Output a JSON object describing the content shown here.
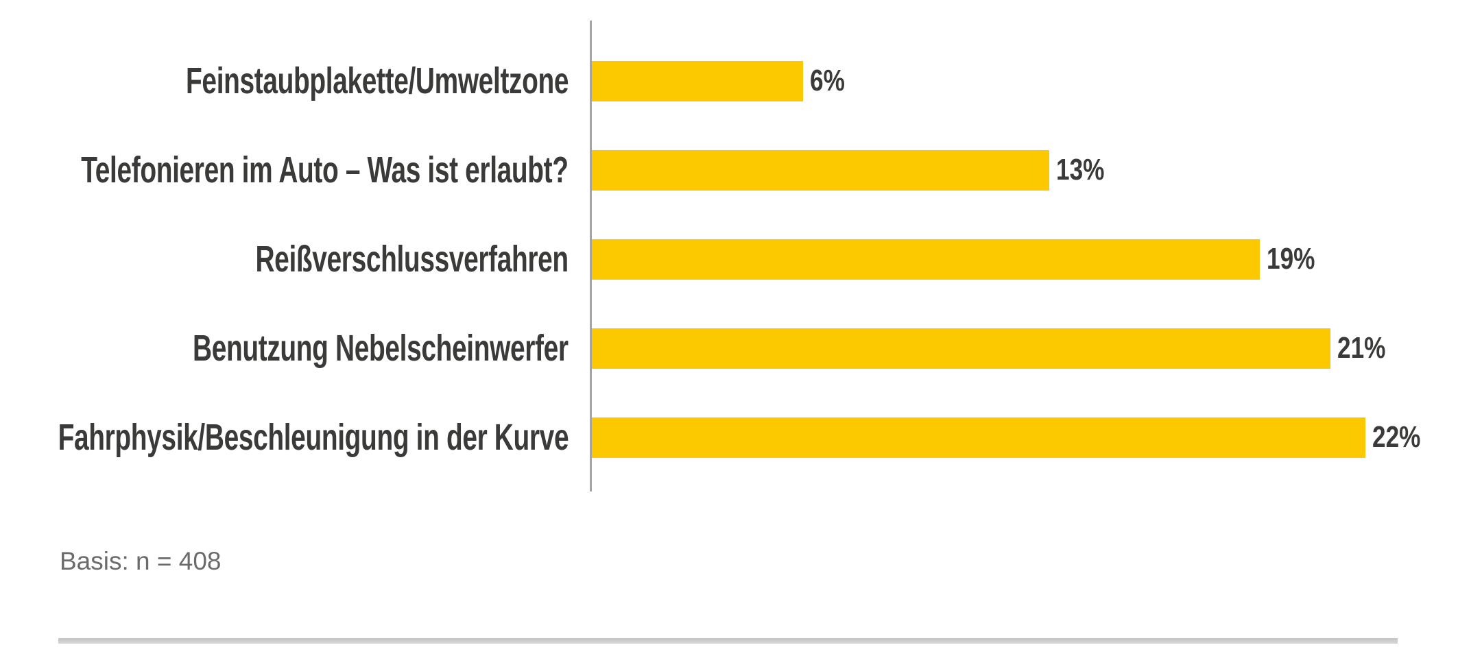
{
  "chart_data": {
    "type": "bar",
    "orientation": "horizontal",
    "title": "",
    "xlabel": "",
    "ylabel": "",
    "categories": [
      "Feinstaubplakette/Umweltzone",
      "Telefonieren im Auto – Was ist erlaubt?",
      "Reißverschlussverfahren",
      "Benutzung Nebelscheinwerfer",
      "Fahrphysik/Beschleunigung in der Kurve"
    ],
    "values": [
      6,
      13,
      19,
      21,
      22
    ],
    "value_labels": [
      "6%",
      "13%",
      "19%",
      "21%",
      "22%"
    ],
    "xlim": [
      0,
      22
    ],
    "grid": false,
    "legend": false,
    "bar_color": "#fcc900"
  },
  "footer": {
    "basis": "Basis: n = 408"
  },
  "colors": {
    "bar": "#fcc900",
    "category_text": "#3a3a39",
    "value_text": "#3a3a39",
    "axis_line": "#a5a5a4",
    "basis_text": "#6b6b6b",
    "divider": "#c6c6c6",
    "background": "#ffffff"
  }
}
